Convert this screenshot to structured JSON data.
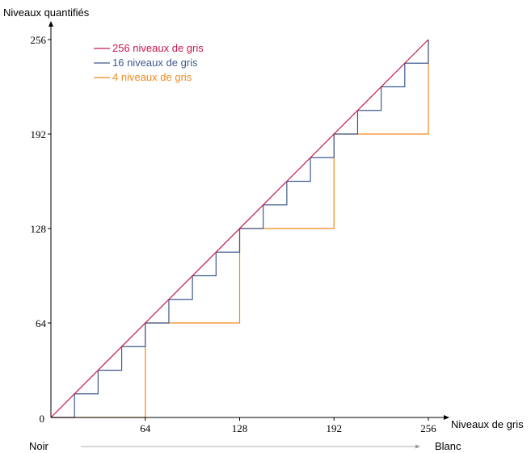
{
  "chart_data": {
    "type": "line",
    "title": "",
    "xlabel": "Niveaux de gris",
    "ylabel": "Niveaux quantifiés",
    "xlim": [
      0,
      256
    ],
    "ylim": [
      0,
      256
    ],
    "xticks": [
      "0",
      "64",
      "128",
      "192",
      "256"
    ],
    "yticks": [
      "0",
      "64",
      "128",
      "192",
      "256"
    ],
    "x_start_label": "Noir",
    "x_end_label": "Blanc",
    "legend_position": "top-left",
    "series": [
      {
        "name": "256 niveaux de gris",
        "color": "#c8174a",
        "step": 0,
        "points": [
          [
            0,
            0
          ],
          [
            256,
            256
          ]
        ]
      },
      {
        "name": "16 niveaux de gris",
        "color": "#3e5a8f",
        "step": 16,
        "points": [
          [
            0,
            0
          ],
          [
            16,
            0
          ],
          [
            16,
            16
          ],
          [
            32,
            16
          ],
          [
            32,
            32
          ],
          [
            48,
            32
          ],
          [
            48,
            48
          ],
          [
            64,
            48
          ],
          [
            64,
            64
          ],
          [
            80,
            64
          ],
          [
            80,
            80
          ],
          [
            96,
            80
          ],
          [
            96,
            96
          ],
          [
            112,
            96
          ],
          [
            112,
            112
          ],
          [
            128,
            112
          ],
          [
            128,
            128
          ],
          [
            144,
            128
          ],
          [
            144,
            144
          ],
          [
            160,
            144
          ],
          [
            160,
            160
          ],
          [
            176,
            160
          ],
          [
            176,
            176
          ],
          [
            192,
            176
          ],
          [
            192,
            192
          ],
          [
            208,
            192
          ],
          [
            208,
            208
          ],
          [
            224,
            208
          ],
          [
            224,
            224
          ],
          [
            240,
            224
          ],
          [
            240,
            240
          ],
          [
            256,
            240
          ],
          [
            256,
            256
          ]
        ]
      },
      {
        "name": "4 niveaux de gris",
        "color": "#f08a1c",
        "step": 64,
        "points": [
          [
            0,
            0
          ],
          [
            64,
            0
          ],
          [
            64,
            64
          ],
          [
            128,
            64
          ],
          [
            128,
            128
          ],
          [
            192,
            128
          ],
          [
            192,
            192
          ],
          [
            256,
            192
          ],
          [
            256,
            256
          ]
        ]
      }
    ]
  }
}
